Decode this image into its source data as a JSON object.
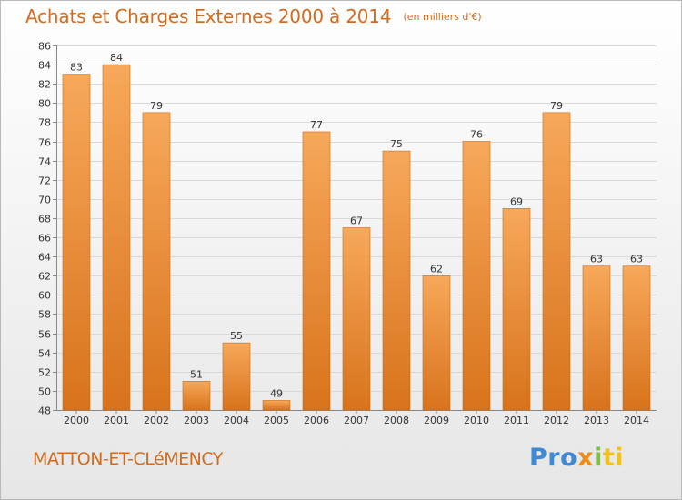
{
  "header": {
    "title": "Achats et Charges Externes 2000 à 2014",
    "subtitle": "(en milliers d'€)"
  },
  "footer": {
    "commune": "MATTON-ET-CLéMENCY",
    "logo": [
      "Pro",
      "x",
      "i",
      "ti"
    ]
  },
  "colors": {
    "accent": "#d36b1e",
    "bar_light": "#f7a85a",
    "bar_dark": "#dc7a22",
    "bar_stroke": "#c86a1a",
    "grid": "#d9d9d9"
  },
  "chart_data": {
    "type": "bar",
    "title": "Achats et Charges Externes 2000 à 2014",
    "subtitle": "(en milliers d'€)",
    "xlabel": "",
    "ylabel": "",
    "categories": [
      "2000",
      "2001",
      "2002",
      "2003",
      "2004",
      "2005",
      "2006",
      "2007",
      "2008",
      "2009",
      "2010",
      "2011",
      "2012",
      "2013",
      "2014"
    ],
    "values": [
      83,
      84,
      79,
      51,
      55,
      49,
      77,
      67,
      75,
      62,
      76,
      69,
      79,
      63,
      63
    ],
    "ylim": [
      48,
      86
    ],
    "yticks": [
      48,
      50,
      52,
      54,
      56,
      58,
      60,
      62,
      64,
      66,
      68,
      70,
      72,
      74,
      76,
      78,
      80,
      82,
      84,
      86
    ],
    "grid": true,
    "legend": "none"
  }
}
